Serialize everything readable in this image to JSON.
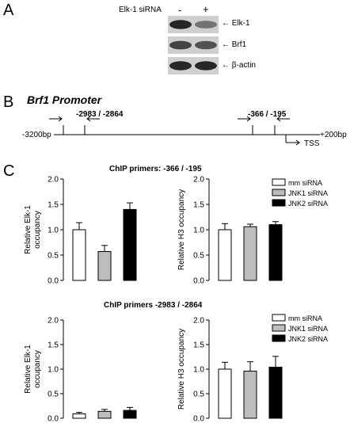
{
  "panel_a": {
    "letter": "A",
    "condition_label": "Elk-1 siRNA",
    "lanes": [
      "-",
      "+"
    ],
    "bands": [
      {
        "name": "Elk-1",
        "intensity": [
          0.85,
          0.45
        ]
      },
      {
        "name": "Brf1",
        "intensity": [
          0.7,
          0.62
        ]
      },
      {
        "name": "β-actin",
        "intensity": [
          0.85,
          0.85
        ]
      }
    ]
  },
  "panel_b": {
    "letter": "B",
    "title": "Brf1 Promoter",
    "left_end": "-3200bp",
    "right_end": "+200bp",
    "tss": "TSS",
    "amplicon_labels": [
      "-2983 / -2864",
      "-366 / -195"
    ]
  },
  "panel_c": {
    "letter": "C",
    "legend": [
      "mm siRNA",
      "JNK1 siRNA",
      "JNK2 siRNA"
    ],
    "colors": {
      "mm siRNA": "#ffffff",
      "JNK1 siRNA": "#bdbdbd",
      "JNK2 siRNA": "#000000"
    },
    "rows": [
      {
        "header": "ChIP primers: -366 / -195",
        "ylabel_left": [
          "Relative Elk-1",
          "occupancy"
        ],
        "ylabel_right": [
          "Relative H3 occupancy"
        ],
        "yticks": [
          "0.0",
          "0.5",
          "1.0",
          "1.5",
          "2.0"
        ]
      },
      {
        "header": "ChIP primers -2983 / -2864",
        "ylabel_left": [
          "Relative Elk-1",
          "occupancy"
        ],
        "ylabel_right": [
          "Relative H3 occupancy"
        ],
        "yticks": [
          "0.0",
          "0.5",
          "1.0",
          "1.5",
          "2.0"
        ]
      }
    ]
  },
  "chart_data": [
    {
      "type": "bar",
      "categories": [
        "mm siRNA",
        "JNK1 siRNA",
        "JNK2 siRNA"
      ],
      "values": [
        1.0,
        0.57,
        1.4
      ],
      "errors": [
        0.14,
        0.12,
        0.13
      ],
      "ylabel": "Relative Elk-1 occupancy",
      "ylim": [
        0,
        2
      ]
    },
    {
      "type": "bar",
      "categories": [
        "mm siRNA",
        "JNK1 siRNA",
        "JNK2 siRNA"
      ],
      "values": [
        1.0,
        1.06,
        1.1
      ],
      "errors": [
        0.12,
        0.05,
        0.06
      ],
      "ylabel": "Relative H3 occupancy",
      "ylim": [
        0,
        2
      ]
    },
    {
      "type": "bar",
      "categories": [
        "mm siRNA",
        "JNK1 siRNA",
        "JNK2 siRNA"
      ],
      "values": [
        0.09,
        0.14,
        0.16
      ],
      "errors": [
        0.03,
        0.04,
        0.06
      ],
      "ylabel": "Relative Elk-1 occupancy",
      "ylim": [
        0,
        2
      ]
    },
    {
      "type": "bar",
      "categories": [
        "mm siRNA",
        "JNK1 siRNA",
        "JNK2 siRNA"
      ],
      "values": [
        1.0,
        0.96,
        1.04
      ],
      "errors": [
        0.14,
        0.19,
        0.22
      ],
      "ylabel": "Relative H3 occupancy",
      "ylim": [
        0,
        2
      ]
    }
  ]
}
